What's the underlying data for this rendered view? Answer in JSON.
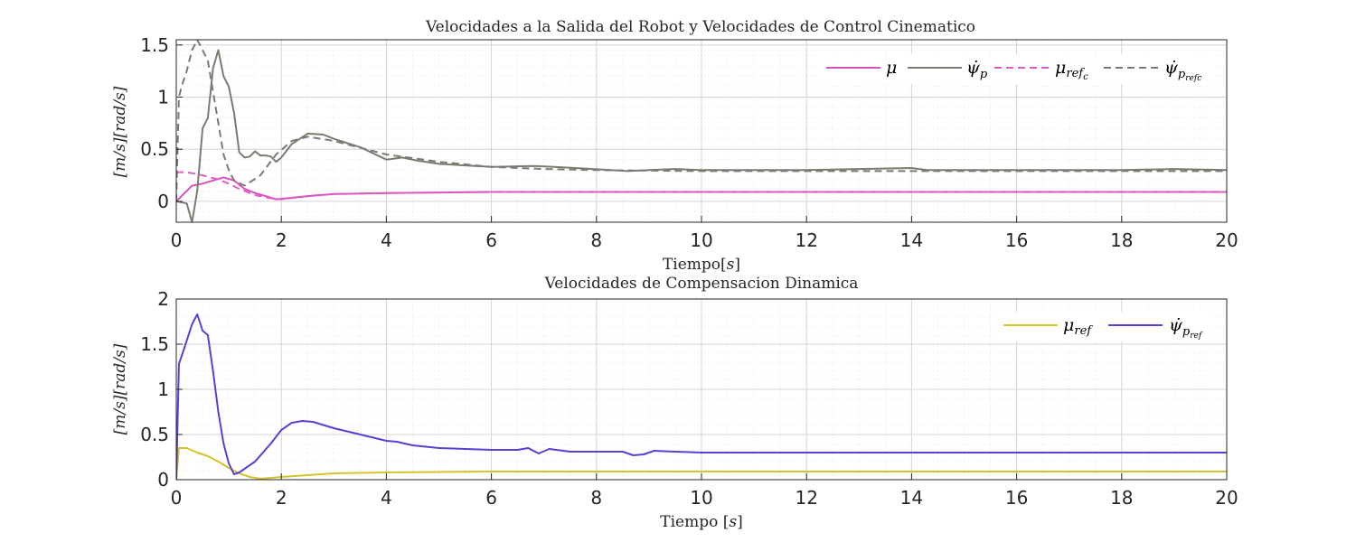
{
  "chart_data": [
    {
      "type": "line",
      "title": "Velocidades a la Salida del Robot y Velocidades de Control Cinematico",
      "xlabel": "Tiempo[s]",
      "ylabel": "[m/s][rad/s]",
      "xlim": [
        0,
        20
      ],
      "ylim": [
        -0.2,
        1.55
      ],
      "xticks": [
        0,
        2,
        4,
        6,
        8,
        10,
        12,
        14,
        16,
        18,
        20
      ],
      "yticks": [
        0,
        0.5,
        1,
        1.5
      ],
      "grid": true,
      "legend": "top-right",
      "series": [
        {
          "name": "μ",
          "color": "#d94fbf",
          "dash": "solid",
          "x": [
            0,
            0.1,
            0.3,
            0.5,
            0.7,
            0.9,
            1.1,
            1.3,
            1.5,
            1.7,
            1.9,
            2.1,
            2.5,
            3,
            4,
            5,
            6,
            7,
            8,
            10,
            12,
            14,
            16,
            18,
            20
          ],
          "y": [
            0,
            0.05,
            0.15,
            0.17,
            0.2,
            0.23,
            0.2,
            0.12,
            0.08,
            0.05,
            0.02,
            0.03,
            0.05,
            0.07,
            0.08,
            0.085,
            0.09,
            0.09,
            0.09,
            0.09,
            0.09,
            0.09,
            0.09,
            0.09,
            0.09
          ]
        },
        {
          "name": "ψ̇p",
          "color": "#7f7a6e",
          "dash": "solid",
          "x": [
            0,
            0.2,
            0.3,
            0.4,
            0.5,
            0.6,
            0.7,
            0.8,
            0.9,
            1.0,
            1.1,
            1.2,
            1.3,
            1.4,
            1.5,
            1.6,
            1.7,
            1.8,
            1.9,
            2.0,
            2.2,
            2.5,
            2.8,
            3.0,
            3.5,
            4.0,
            4.3,
            4.6,
            5,
            6,
            6.8,
            7.2,
            7.6,
            8.6,
            9.0,
            9.5,
            10,
            12,
            14,
            14.3,
            16,
            18,
            19,
            20
          ],
          "y": [
            0,
            -0.02,
            -0.2,
            0.1,
            0.7,
            0.8,
            1.28,
            1.45,
            1.2,
            1.1,
            0.85,
            0.47,
            0.42,
            0.43,
            0.48,
            0.44,
            0.44,
            0.43,
            0.38,
            0.42,
            0.55,
            0.65,
            0.64,
            0.6,
            0.52,
            0.4,
            0.42,
            0.39,
            0.36,
            0.33,
            0.34,
            0.33,
            0.32,
            0.29,
            0.3,
            0.31,
            0.3,
            0.3,
            0.32,
            0.3,
            0.3,
            0.3,
            0.31,
            0.3
          ]
        },
        {
          "name": "μref_c",
          "color": "#e05cc4",
          "dash": "dashed",
          "x": [
            0,
            0.2,
            0.5,
            0.8,
            1.0,
            1.2,
            1.5,
            1.8,
            2.0,
            2.5,
            3,
            4,
            5,
            6,
            8,
            10,
            12,
            14,
            16,
            18,
            20
          ],
          "y": [
            0.28,
            0.28,
            0.25,
            0.21,
            0.17,
            0.12,
            0.06,
            0.03,
            0.02,
            0.05,
            0.07,
            0.08,
            0.085,
            0.09,
            0.09,
            0.09,
            0.09,
            0.09,
            0.09,
            0.09,
            0.09
          ]
        },
        {
          "name": "ψ̇p_ref_c",
          "color": "#7a7a7a",
          "dash": "dashed",
          "x": [
            0,
            0.05,
            0.1,
            0.2,
            0.3,
            0.4,
            0.5,
            0.6,
            0.7,
            0.8,
            0.9,
            1.0,
            1.1,
            1.3,
            1.6,
            1.9,
            2.2,
            2.5,
            3.0,
            4,
            5,
            6,
            7,
            8,
            10,
            12,
            14,
            16,
            18,
            20
          ],
          "y": [
            0.0,
            1.0,
            1.1,
            1.25,
            1.45,
            1.55,
            1.45,
            1.35,
            1.05,
            0.75,
            0.45,
            0.3,
            0.2,
            0.15,
            0.25,
            0.45,
            0.58,
            0.62,
            0.58,
            0.45,
            0.38,
            0.33,
            0.31,
            0.3,
            0.29,
            0.29,
            0.29,
            0.29,
            0.29,
            0.29
          ]
        }
      ],
      "legend_labels": [
        {
          "base": "μ",
          "sub": ""
        },
        {
          "base": "ψ̇",
          "sub": "p"
        },
        {
          "base": "μ",
          "sub": "ref",
          "subsub": "c"
        },
        {
          "base": "ψ̇",
          "sub": "p",
          "subsub": "refc"
        }
      ]
    },
    {
      "type": "line",
      "title": "Velocidades de Compensacion Dinamica",
      "xlabel": "Tiempo [s]",
      "ylabel": "[m/s][rad/s]",
      "xlim": [
        0,
        20
      ],
      "ylim": [
        0,
        2
      ],
      "xticks": [
        0,
        2,
        4,
        6,
        8,
        10,
        12,
        14,
        16,
        18,
        20
      ],
      "yticks": [
        0,
        0.5,
        1,
        1.5,
        2
      ],
      "grid": true,
      "legend": "top-right",
      "series": [
        {
          "name": "μref",
          "color": "#d4c42a",
          "dash": "solid",
          "x": [
            0,
            0.05,
            0.2,
            0.4,
            0.6,
            0.8,
            1.0,
            1.2,
            1.4,
            1.6,
            1.8,
            2.0,
            2.5,
            3,
            4,
            5,
            6,
            7,
            8,
            10,
            12,
            14,
            16,
            18,
            20
          ],
          "y": [
            0,
            0.35,
            0.35,
            0.3,
            0.26,
            0.2,
            0.13,
            0.07,
            0.03,
            0.01,
            0.02,
            0.03,
            0.05,
            0.07,
            0.08,
            0.085,
            0.09,
            0.09,
            0.09,
            0.09,
            0.09,
            0.09,
            0.09,
            0.09,
            0.09
          ]
        },
        {
          "name": "ψ̇pref",
          "color": "#5a3fd4",
          "dash": "solid",
          "x": [
            0,
            0.05,
            0.15,
            0.3,
            0.4,
            0.5,
            0.6,
            0.7,
            0.8,
            0.9,
            1.0,
            1.1,
            1.2,
            1.5,
            1.8,
            2.0,
            2.2,
            2.4,
            2.6,
            3.0,
            3.5,
            4.0,
            4.2,
            4.5,
            5,
            6,
            6.5,
            6.7,
            6.9,
            7.1,
            7.5,
            8.5,
            8.7,
            8.9,
            9.1,
            9.5,
            10,
            12,
            14,
            16,
            18,
            20
          ],
          "y": [
            0,
            1.28,
            1.45,
            1.72,
            1.83,
            1.65,
            1.6,
            1.2,
            0.75,
            0.4,
            0.18,
            0.06,
            0.08,
            0.2,
            0.4,
            0.55,
            0.63,
            0.65,
            0.64,
            0.57,
            0.5,
            0.43,
            0.42,
            0.38,
            0.35,
            0.33,
            0.33,
            0.35,
            0.29,
            0.34,
            0.31,
            0.31,
            0.27,
            0.28,
            0.32,
            0.31,
            0.3,
            0.3,
            0.3,
            0.3,
            0.3,
            0.3
          ]
        }
      ],
      "legend_labels": [
        {
          "base": "μ",
          "sub": "ref"
        },
        {
          "base": "ψ̇",
          "sub": "p",
          "subsub": "ref"
        }
      ]
    }
  ]
}
